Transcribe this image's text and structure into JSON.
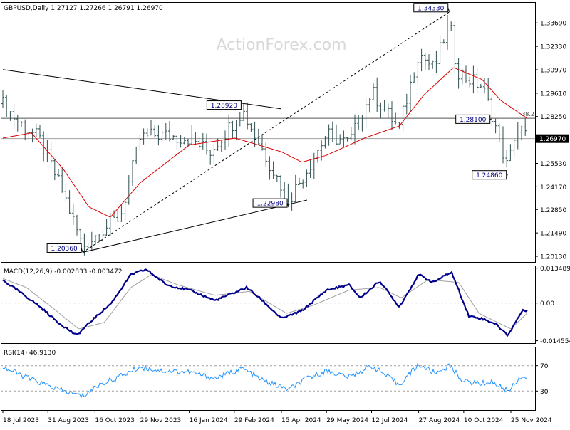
{
  "chart_data": [
    {
      "type": "ohlc",
      "panel": "price",
      "header": {
        "symbol": "GBPUSD,Daily",
        "open": "1.27127",
        "high": "1.27266",
        "low": "1.26791",
        "close": "1.26970"
      },
      "watermark": "ActionForex.com",
      "yticks": [
        "1.33690",
        "1.32330",
        "1.30970",
        "1.29610",
        "1.28250",
        "1.26970",
        "1.25530",
        "1.24170",
        "1.22850",
        "1.21490",
        "1.20130"
      ],
      "ylim": [
        1.198,
        1.349
      ],
      "current_price": "1.26970",
      "fib_label": "38.2",
      "fib_level": 1.2815,
      "annotations": [
        {
          "label": "1.20360",
          "date": "2023-10-04",
          "value": 1.2036
        },
        {
          "label": "1.28920",
          "date": "2024-03-08",
          "value": 1.2892
        },
        {
          "label": "1.22980",
          "date": "2024-04-22",
          "value": 1.2298
        },
        {
          "label": "1.34330",
          "date": "2024-09-26",
          "value": 1.3433
        },
        {
          "label": "1.28100",
          "date": "2024-11-06",
          "value": 1.281
        },
        {
          "label": "1.24860",
          "date": "2024-11-22",
          "value": 1.2486
        }
      ],
      "trendlines": [
        {
          "style": "solid",
          "from": {
            "date": "2023-07-18",
            "value": 1.3098
          },
          "to": {
            "date": "2024-04-15",
            "value": 1.287
          }
        },
        {
          "style": "solid",
          "from": {
            "date": "2023-10-04",
            "value": 1.2036
          },
          "to": {
            "date": "2024-05-10",
            "value": 1.234
          }
        },
        {
          "style": "dashed",
          "from": {
            "date": "2023-10-04",
            "value": 1.2036
          },
          "to": {
            "date": "2024-09-26",
            "value": 1.3433
          }
        }
      ],
      "ma_color": "#dd0000",
      "bar_color": "#2f4f4f",
      "anchors": [
        [
          "2023-07-18",
          1.29
        ],
        [
          "2023-08-01",
          1.28
        ],
        [
          "2023-08-22",
          1.27
        ],
        [
          "2023-09-15",
          1.238
        ],
        [
          "2023-10-04",
          1.207
        ],
        [
          "2023-10-20",
          1.215
        ],
        [
          "2023-11-10",
          1.225
        ],
        [
          "2023-11-29",
          1.27
        ],
        [
          "2023-12-15",
          1.272
        ],
        [
          "2024-01-16",
          1.27
        ],
        [
          "2024-02-05",
          1.262
        ],
        [
          "2024-03-08",
          1.286
        ],
        [
          "2024-03-20",
          1.272
        ],
        [
          "2024-04-22",
          1.234
        ],
        [
          "2024-05-10",
          1.252
        ],
        [
          "2024-05-29",
          1.272
        ],
        [
          "2024-06-20",
          1.267
        ],
        [
          "2024-07-12",
          1.297
        ],
        [
          "2024-07-25",
          1.286
        ],
        [
          "2024-08-08",
          1.276
        ],
        [
          "2024-08-27",
          1.32
        ],
        [
          "2024-09-11",
          1.31
        ],
        [
          "2024-09-26",
          1.338
        ],
        [
          "2024-10-03",
          1.31
        ],
        [
          "2024-10-10",
          1.306
        ],
        [
          "2024-10-28",
          1.3
        ],
        [
          "2024-11-06",
          1.285
        ],
        [
          "2024-11-22",
          1.252
        ],
        [
          "2024-11-29",
          1.274
        ],
        [
          "2024-12-06",
          1.274
        ],
        [
          "2024-12-12",
          1.2697
        ]
      ],
      "ma_anchors": [
        [
          "2023-07-18",
          1.27
        ],
        [
          "2023-08-15",
          1.273
        ],
        [
          "2023-09-15",
          1.252
        ],
        [
          "2023-10-10",
          1.23
        ],
        [
          "2023-10-31",
          1.224
        ],
        [
          "2023-11-29",
          1.244
        ],
        [
          "2024-01-16",
          1.266
        ],
        [
          "2024-03-01",
          1.27
        ],
        [
          "2024-04-15",
          1.262
        ],
        [
          "2024-05-05",
          1.256
        ],
        [
          "2024-05-29",
          1.26
        ],
        [
          "2024-07-05",
          1.27
        ],
        [
          "2024-08-08",
          1.277
        ],
        [
          "2024-09-01",
          1.295
        ],
        [
          "2024-09-30",
          1.311
        ],
        [
          "2024-10-28",
          1.304
        ],
        [
          "2024-11-15",
          1.292
        ],
        [
          "2024-12-12",
          1.281
        ]
      ],
      "xticks": [
        {
          "label": "18 Jul 2023",
          "date": "2023-07-18"
        },
        {
          "label": "31 Aug 2023",
          "date": "2023-08-31"
        },
        {
          "label": "16 Oct 2023",
          "date": "2023-10-16"
        },
        {
          "label": "29 Nov 2023",
          "date": "2023-11-29"
        },
        {
          "label": "16 Jan 2024",
          "date": "2024-01-16"
        },
        {
          "label": "29 Feb 2024",
          "date": "2024-02-29"
        },
        {
          "label": "15 Apr 2024",
          "date": "2024-04-15"
        },
        {
          "label": "29 May 2024",
          "date": "2024-05-29"
        },
        {
          "label": "12 Jul 2024",
          "date": "2024-07-12"
        },
        {
          "label": "27 Aug 2024",
          "date": "2024-08-27"
        },
        {
          "label": "10 Oct 2024",
          "date": "2024-10-10"
        },
        {
          "label": "25 Nov 2024",
          "date": "2024-11-25"
        }
      ]
    },
    {
      "type": "line",
      "panel": "macd",
      "header": "MACD(12,26,9) -0.002833 -0.003472",
      "yticks": [
        "0.013489",
        "0.00",
        "-0.014554"
      ],
      "ylim": [
        -0.0155,
        0.0145
      ],
      "macd_color": "#00008b",
      "signal_color": "#a0a0a0",
      "anchors": [
        [
          "2023-07-18",
          0.0088
        ],
        [
          "2023-08-01",
          0.005
        ],
        [
          "2023-08-22",
          -0.001
        ],
        [
          "2023-09-10",
          -0.0075
        ],
        [
          "2023-09-28",
          -0.0125
        ],
        [
          "2023-10-15",
          -0.006
        ],
        [
          "2023-11-01",
          0.0
        ],
        [
          "2023-11-20",
          0.011
        ],
        [
          "2023-12-05",
          0.013
        ],
        [
          "2023-12-25",
          0.007
        ],
        [
          "2024-01-16",
          0.005
        ],
        [
          "2024-02-10",
          0.001
        ],
        [
          "2024-02-29",
          0.004
        ],
        [
          "2024-03-12",
          0.006
        ],
        [
          "2024-03-26",
          0.0015
        ],
        [
          "2024-04-15",
          -0.006
        ],
        [
          "2024-05-05",
          -0.003
        ],
        [
          "2024-05-29",
          0.005
        ],
        [
          "2024-06-20",
          0.007
        ],
        [
          "2024-07-01",
          0.002
        ],
        [
          "2024-07-20",
          0.0085
        ],
        [
          "2024-08-08",
          -0.0015
        ],
        [
          "2024-08-27",
          0.011
        ],
        [
          "2024-09-10",
          0.008
        ],
        [
          "2024-09-28",
          0.012
        ],
        [
          "2024-10-15",
          -0.005
        ],
        [
          "2024-10-28",
          -0.006
        ],
        [
          "2024-11-10",
          -0.008
        ],
        [
          "2024-11-22",
          -0.0125
        ],
        [
          "2024-12-06",
          -0.003
        ],
        [
          "2024-12-12",
          -0.0028
        ]
      ],
      "signal_anchors": [
        [
          "2023-07-18",
          0.0095
        ],
        [
          "2023-08-10",
          0.006
        ],
        [
          "2023-09-05",
          -0.002
        ],
        [
          "2023-09-30",
          -0.01
        ],
        [
          "2023-10-25",
          -0.0075
        ],
        [
          "2023-11-20",
          0.006
        ],
        [
          "2023-12-10",
          0.011
        ],
        [
          "2024-01-05",
          0.007
        ],
        [
          "2024-02-10",
          0.003
        ],
        [
          "2024-03-15",
          0.0045
        ],
        [
          "2024-04-20",
          -0.004
        ],
        [
          "2024-05-15",
          -0.001
        ],
        [
          "2024-06-20",
          0.005
        ],
        [
          "2024-07-20",
          0.006
        ],
        [
          "2024-08-10",
          0.002
        ],
        [
          "2024-09-05",
          0.009
        ],
        [
          "2024-10-05",
          0.008
        ],
        [
          "2024-10-25",
          -0.004
        ],
        [
          "2024-11-25",
          -0.01
        ],
        [
          "2024-12-12",
          -0.0035
        ]
      ]
    },
    {
      "type": "line",
      "panel": "rsi",
      "header": "RSI(14) 46.9130",
      "yticks": [
        "70",
        "30"
      ],
      "ylim": [
        0,
        100
      ],
      "rsi_color": "#1e90ff",
      "anchors": [
        [
          "2023-07-18",
          68
        ],
        [
          "2023-08-05",
          55
        ],
        [
          "2023-08-25",
          42
        ],
        [
          "2023-09-15",
          30
        ],
        [
          "2023-10-04",
          22
        ],
        [
          "2023-10-20",
          40
        ],
        [
          "2023-11-05",
          50
        ],
        [
          "2023-11-29",
          68
        ],
        [
          "2023-12-20",
          62
        ],
        [
          "2024-01-16",
          60
        ],
        [
          "2024-02-10",
          50
        ],
        [
          "2024-03-08",
          66
        ],
        [
          "2024-03-26",
          48
        ],
        [
          "2024-04-22",
          32
        ],
        [
          "2024-05-10",
          50
        ],
        [
          "2024-05-29",
          62
        ],
        [
          "2024-06-20",
          52
        ],
        [
          "2024-07-12",
          70
        ],
        [
          "2024-08-08",
          40
        ],
        [
          "2024-08-27",
          72
        ],
        [
          "2024-09-12",
          58
        ],
        [
          "2024-09-26",
          70
        ],
        [
          "2024-10-10",
          45
        ],
        [
          "2024-10-28",
          42
        ],
        [
          "2024-11-06",
          45
        ],
        [
          "2024-11-22",
          30
        ],
        [
          "2024-12-06",
          55
        ],
        [
          "2024-12-12",
          46.9
        ]
      ]
    }
  ]
}
